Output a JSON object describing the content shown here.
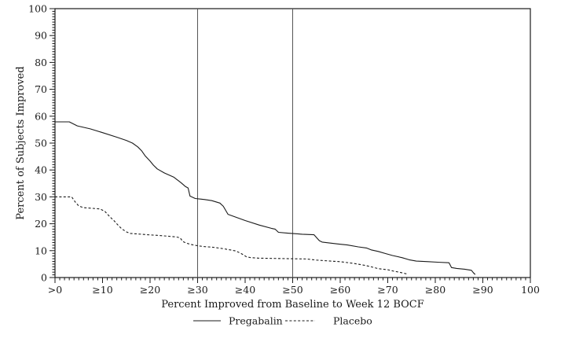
{
  "chart_data": {
    "type": "line",
    "title": "",
    "xlabel": "Percent Improved from Baseline to Week 12 BOCF",
    "ylabel": "Percent of Subjects Improved",
    "xlim": [
      0,
      100
    ],
    "ylim": [
      0,
      100
    ],
    "grid": false,
    "background_color": "#ffffff",
    "axis_color": "#1a1a1a",
    "line_color": "#1a1a1a",
    "reference_line_color": "#555555",
    "legend_position": "bottom-center",
    "x_ticks": [
      {
        "value": 0,
        "label": ">0"
      },
      {
        "value": 10,
        "label": "≥10"
      },
      {
        "value": 20,
        "label": "≥20"
      },
      {
        "value": 30,
        "label": "≥30"
      },
      {
        "value": 40,
        "label": "≥40"
      },
      {
        "value": 50,
        "label": "≥50"
      },
      {
        "value": 60,
        "label": "≥60"
      },
      {
        "value": 70,
        "label": "≥70"
      },
      {
        "value": 80,
        "label": "≥80"
      },
      {
        "value": 90,
        "label": "≥90"
      },
      {
        "value": 100,
        "label": "100"
      }
    ],
    "y_ticks": [
      {
        "value": 0,
        "label": "0"
      },
      {
        "value": 10,
        "label": "10"
      },
      {
        "value": 20,
        "label": "20"
      },
      {
        "value": 30,
        "label": "30"
      },
      {
        "value": 40,
        "label": "40"
      },
      {
        "value": 50,
        "label": "50"
      },
      {
        "value": 60,
        "label": "60"
      },
      {
        "value": 70,
        "label": "70"
      },
      {
        "value": 80,
        "label": "80"
      },
      {
        "value": 90,
        "label": "90"
      },
      {
        "value": 100,
        "label": "100"
      }
    ],
    "x_minor_tick_step": 1,
    "y_minor_tick_step": 1,
    "reference_lines_x": [
      30,
      50
    ],
    "legend": [
      {
        "label": "Pregabalin",
        "line_style": "solid"
      },
      {
        "label": "Placebo",
        "line_style": "dashed"
      }
    ],
    "series": [
      {
        "name": "Pregabalin",
        "line_style": "solid",
        "points": [
          [
            0,
            57.9
          ],
          [
            3,
            57.9
          ],
          [
            4.7,
            56.4
          ],
          [
            7.4,
            55.3
          ],
          [
            10,
            53.9
          ],
          [
            13,
            52.2
          ],
          [
            15,
            51
          ],
          [
            16.3,
            50
          ],
          [
            17.4,
            48.6
          ],
          [
            18.2,
            47.2
          ],
          [
            19,
            45.2
          ],
          [
            20,
            43.3
          ],
          [
            20.7,
            41.8
          ],
          [
            21.5,
            40.4
          ],
          [
            23,
            38.9
          ],
          [
            25,
            37.3
          ],
          [
            26.5,
            35.3
          ],
          [
            27.4,
            33.9
          ],
          [
            28,
            33.3
          ],
          [
            28.4,
            30.3
          ],
          [
            29.5,
            29.4
          ],
          [
            31.5,
            29
          ],
          [
            33,
            28.6
          ],
          [
            34.7,
            27.7
          ],
          [
            35.4,
            26.5
          ],
          [
            35.9,
            25
          ],
          [
            36.4,
            23.5
          ],
          [
            38,
            22.5
          ],
          [
            40,
            21.2
          ],
          [
            43,
            19.5
          ],
          [
            45.5,
            18.3
          ],
          [
            46.3,
            18
          ],
          [
            47,
            16.8
          ],
          [
            49,
            16.5
          ],
          [
            52,
            16.1
          ],
          [
            54.5,
            15.9
          ],
          [
            55.6,
            13.7
          ],
          [
            56.2,
            13.2
          ],
          [
            59.5,
            12.5
          ],
          [
            61.5,
            12.1
          ],
          [
            63.8,
            11.4
          ],
          [
            65.5,
            11
          ],
          [
            66.5,
            10.3
          ],
          [
            68,
            9.7
          ],
          [
            69.6,
            8.9
          ],
          [
            71,
            8.2
          ],
          [
            73,
            7.4
          ],
          [
            74.5,
            6.6
          ],
          [
            76,
            6.1
          ],
          [
            78.5,
            5.9
          ],
          [
            80.5,
            5.7
          ],
          [
            82.9,
            5.5
          ],
          [
            83.4,
            3.7
          ],
          [
            84.5,
            3.4
          ],
          [
            86.2,
            3.1
          ],
          [
            87.6,
            2.7
          ],
          [
            88,
            1.8
          ],
          [
            88.4,
            1.1
          ]
        ]
      },
      {
        "name": "Placebo",
        "line_style": "dashed",
        "points": [
          [
            0,
            30
          ],
          [
            3.5,
            30
          ],
          [
            4.3,
            28
          ],
          [
            5,
            26.6
          ],
          [
            6,
            26
          ],
          [
            7.5,
            25.8
          ],
          [
            9.5,
            25.5
          ],
          [
            10.5,
            24.6
          ],
          [
            11.6,
            22.5
          ],
          [
            12.5,
            21
          ],
          [
            13.2,
            19.6
          ],
          [
            14,
            18.2
          ],
          [
            15,
            17
          ],
          [
            15.8,
            16.4
          ],
          [
            17.5,
            16.2
          ],
          [
            19.5,
            15.9
          ],
          [
            21.5,
            15.7
          ],
          [
            23.5,
            15.4
          ],
          [
            25.5,
            15.1
          ],
          [
            26.3,
            14.8
          ],
          [
            26.9,
            13.4
          ],
          [
            27.6,
            12.8
          ],
          [
            28.6,
            12.3
          ],
          [
            30,
            11.8
          ],
          [
            31.5,
            11.5
          ],
          [
            33.1,
            11.3
          ],
          [
            35.5,
            10.7
          ],
          [
            38,
            9.9
          ],
          [
            39.2,
            8.9
          ],
          [
            40.3,
            7.7
          ],
          [
            41.2,
            7.4
          ],
          [
            43,
            7.2
          ],
          [
            46,
            7.1
          ],
          [
            50,
            7
          ],
          [
            53,
            6.9
          ],
          [
            55,
            6.5
          ],
          [
            58,
            6.1
          ],
          [
            60,
            5.9
          ],
          [
            63,
            5.2
          ],
          [
            65,
            4.6
          ],
          [
            66.3,
            4.1
          ],
          [
            68,
            3.3
          ],
          [
            70,
            2.9
          ],
          [
            71.2,
            2.4
          ],
          [
            72.9,
            1.8
          ],
          [
            74.3,
            1.2
          ]
        ]
      }
    ]
  }
}
